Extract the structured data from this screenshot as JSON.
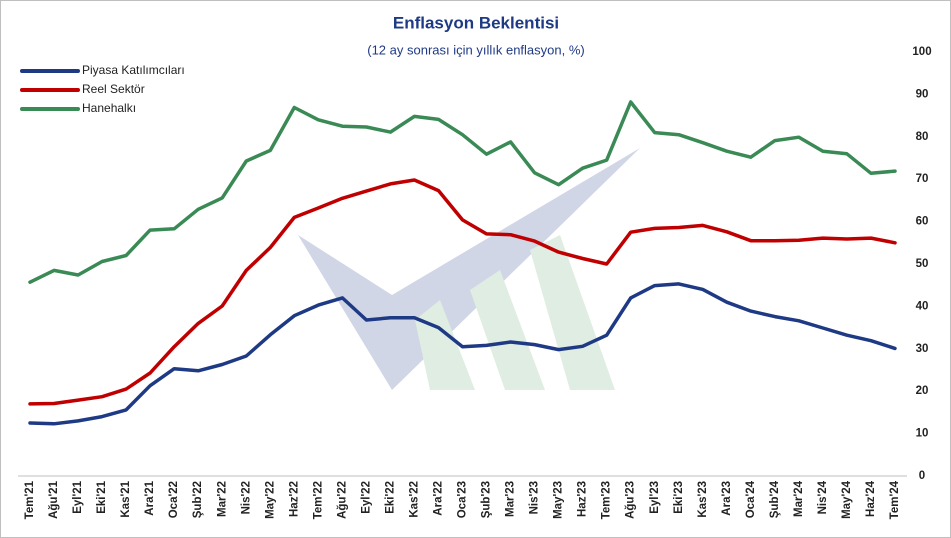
{
  "chart_data": {
    "type": "line",
    "title": "Enflasyon Beklentisi",
    "subtitle": "(12 ay sonrası için yıllık enflasyon, %)",
    "categories": [
      "Tem'21",
      "Ağu'21",
      "Eyl'21",
      "Eki'21",
      "Kas'21",
      "Ara'21",
      "Oca'22",
      "Şub'22",
      "Mar'22",
      "Nis'22",
      "May'22",
      "Haz'22",
      "Tem'22",
      "Ağu'22",
      "Eyl'22",
      "Eki'22",
      "Kas'22",
      "Ara'22",
      "Oca'23",
      "Şub'23",
      "Mar'23",
      "Nis'23",
      "May'23",
      "Haz'23",
      "Tem'23",
      "Ağu'23",
      "Eyl'23",
      "Eki'23",
      "Kas'23",
      "Ara'23",
      "Oca'24",
      "Şub'24",
      "Mar'24",
      "Nis'24",
      "May'24",
      "Haz'24",
      "Tem'24"
    ],
    "series": [
      {
        "name": "Piyasa Katılımcıları",
        "color": "#1f3a85",
        "values": [
          12.5,
          12.3,
          13,
          14,
          15.6,
          21.3,
          25.3,
          24.8,
          26.3,
          28.3,
          33.3,
          37.8,
          40.3,
          42,
          36.8,
          37.3,
          37.3,
          35,
          30.5,
          30.8,
          31.6,
          31,
          29.8,
          30.6,
          33.2,
          42,
          44.9,
          45.3,
          44,
          41,
          38.9,
          37.6,
          36.6,
          34.9,
          33.2,
          31.9,
          30.1
        ]
      },
      {
        "name": "Reel Sektör",
        "color": "#c00000",
        "values": [
          17,
          17.1,
          17.9,
          18.7,
          20.5,
          24.3,
          30.5,
          36,
          40.1,
          48.5,
          53.9,
          61,
          63.2,
          65.5,
          67.2,
          68.9,
          69.8,
          67.3,
          60.4,
          57.1,
          56.9,
          55.4,
          52.8,
          51.3,
          50,
          57.5,
          58.4,
          58.6,
          59.1,
          57.6,
          55.5,
          55.5,
          55.6,
          56.1,
          55.9,
          56.1,
          55
        ]
      },
      {
        "name": "Hanehalkı",
        "color": "#3a8a55",
        "values": [
          45.7,
          48.5,
          47.4,
          50.6,
          52,
          58,
          58.3,
          62.9,
          65.6,
          74.3,
          76.8,
          86.9,
          84,
          82.5,
          82.3,
          81.1,
          84.8,
          84.1,
          80.5,
          75.9,
          78.8,
          71.5,
          68.7,
          72.6,
          74.5,
          88.2,
          81,
          80.5,
          78.6,
          76.6,
          75.2,
          79.1,
          79.9,
          76.6,
          76,
          71.4,
          71.9
        ]
      }
    ],
    "ylim": [
      0,
      100
    ],
    "yticks": [
      0,
      10,
      20,
      30,
      40,
      50,
      60,
      70,
      80,
      90,
      100
    ],
    "y_axis_side": "right",
    "grid": false,
    "legend": "top-left"
  }
}
